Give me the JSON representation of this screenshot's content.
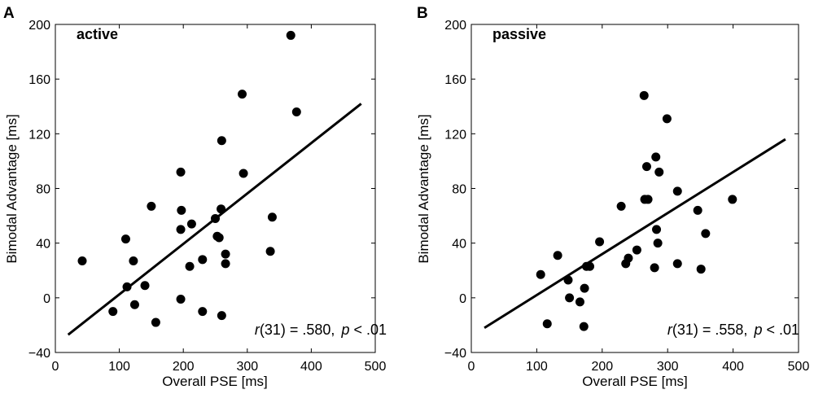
{
  "chart_data": [
    {
      "type": "scatter",
      "panel_label": "A",
      "title": "active",
      "xlabel": "Overall PSE [ms]",
      "ylabel": "Bimodal Advantage [ms]",
      "xlim": [
        0,
        500
      ],
      "ylim": [
        -40,
        200
      ],
      "xticks": [
        0,
        100,
        200,
        300,
        400,
        500
      ],
      "yticks": [
        -40,
        0,
        40,
        80,
        120,
        160,
        200
      ],
      "xtick_labels": [
        "0",
        "100",
        "200",
        "300",
        "400",
        "500"
      ],
      "ytick_labels": [
        "−40",
        "0",
        "40",
        "80",
        "120",
        "160",
        "200"
      ],
      "points": [
        {
          "x": 42,
          "y": 27
        },
        {
          "x": 90,
          "y": -10
        },
        {
          "x": 110,
          "y": 43
        },
        {
          "x": 112,
          "y": 8
        },
        {
          "x": 122,
          "y": 27
        },
        {
          "x": 124,
          "y": -5
        },
        {
          "x": 140,
          "y": 9
        },
        {
          "x": 150,
          "y": 67
        },
        {
          "x": 157,
          "y": -18
        },
        {
          "x": 196,
          "y": 92
        },
        {
          "x": 196,
          "y": 50
        },
        {
          "x": 197,
          "y": 64
        },
        {
          "x": 196,
          "y": -1
        },
        {
          "x": 210,
          "y": 23
        },
        {
          "x": 213,
          "y": 54
        },
        {
          "x": 230,
          "y": 28
        },
        {
          "x": 230,
          "y": -10
        },
        {
          "x": 250,
          "y": 58
        },
        {
          "x": 253,
          "y": 45
        },
        {
          "x": 256,
          "y": 44
        },
        {
          "x": 259,
          "y": 65
        },
        {
          "x": 260,
          "y": 115
        },
        {
          "x": 260,
          "y": -13
        },
        {
          "x": 266,
          "y": 32
        },
        {
          "x": 266,
          "y": 25
        },
        {
          "x": 292,
          "y": 149
        },
        {
          "x": 294,
          "y": 91
        },
        {
          "x": 336,
          "y": 34
        },
        {
          "x": 339,
          "y": 59
        },
        {
          "x": 368,
          "y": 192
        },
        {
          "x": 377,
          "y": 136
        }
      ],
      "fit_line": {
        "x": [
          20,
          478
        ],
        "y": [
          -27,
          142
        ]
      },
      "annotation": {
        "r_label": "r",
        "r_value": "(31) = .580,",
        "p_label": "p",
        "p_value": " < .01"
      }
    },
    {
      "type": "scatter",
      "panel_label": "B",
      "title": "passive",
      "xlabel": "Overall PSE [ms]",
      "ylabel": "Bimodal Advantage [ms]",
      "xlim": [
        0,
        500
      ],
      "ylim": [
        -40,
        200
      ],
      "xticks": [
        0,
        100,
        200,
        300,
        400,
        500
      ],
      "yticks": [
        -40,
        0,
        40,
        80,
        120,
        160,
        200
      ],
      "xtick_labels": [
        "0",
        "100",
        "200",
        "300",
        "400",
        "500"
      ],
      "ytick_labels": [
        "−40",
        "0",
        "40",
        "80",
        "120",
        "160",
        "200"
      ],
      "points": [
        {
          "x": 106,
          "y": 17
        },
        {
          "x": 116,
          "y": -19
        },
        {
          "x": 132,
          "y": 31
        },
        {
          "x": 148,
          "y": 13
        },
        {
          "x": 150,
          "y": 0
        },
        {
          "x": 166,
          "y": -3
        },
        {
          "x": 172,
          "y": -21
        },
        {
          "x": 173,
          "y": 7
        },
        {
          "x": 176,
          "y": 23
        },
        {
          "x": 181,
          "y": 23
        },
        {
          "x": 196,
          "y": 41
        },
        {
          "x": 229,
          "y": 67
        },
        {
          "x": 236,
          "y": 25
        },
        {
          "x": 240,
          "y": 29
        },
        {
          "x": 253,
          "y": 35
        },
        {
          "x": 264,
          "y": 148
        },
        {
          "x": 265,
          "y": 72
        },
        {
          "x": 268,
          "y": 96
        },
        {
          "x": 270,
          "y": 72
        },
        {
          "x": 280,
          "y": 22
        },
        {
          "x": 282,
          "y": 103
        },
        {
          "x": 283,
          "y": 50
        },
        {
          "x": 285,
          "y": 40
        },
        {
          "x": 287,
          "y": 92
        },
        {
          "x": 299,
          "y": 131
        },
        {
          "x": 315,
          "y": 78
        },
        {
          "x": 315,
          "y": 25
        },
        {
          "x": 346,
          "y": 64
        },
        {
          "x": 351,
          "y": 21
        },
        {
          "x": 358,
          "y": 47
        },
        {
          "x": 399,
          "y": 72
        }
      ],
      "fit_line": {
        "x": [
          20,
          480
        ],
        "y": [
          -22,
          116
        ]
      },
      "annotation": {
        "r_label": "r",
        "r_value": "(31) = .558,",
        "p_label": "p",
        "p_value": " < .01"
      }
    }
  ]
}
